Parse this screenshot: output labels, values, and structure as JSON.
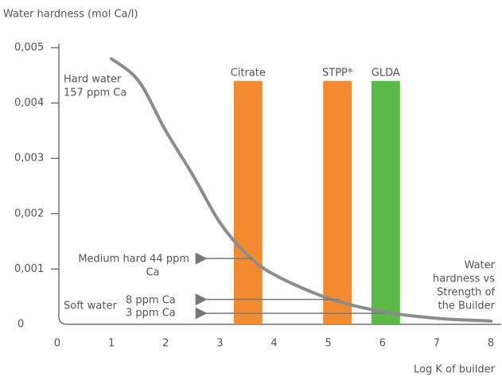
{
  "chart_data": {
    "type": "line",
    "y_axis_title": "Water hardness (mol Ca/l)",
    "x_axis_title": "Log K of builder",
    "xlim": [
      0,
      8
    ],
    "xticks": [
      0,
      1,
      2,
      3,
      4,
      5,
      6,
      7,
      8
    ],
    "ylim": [
      0,
      0.005
    ],
    "yticks": [
      0,
      {
        "value": 0.001,
        "label": "0,001"
      },
      {
        "value": 0.002,
        "label": "0,002"
      },
      {
        "value": 0.003,
        "label": "0,003"
      },
      {
        "value": 0.004,
        "label": "0,004"
      },
      {
        "value": 0.005,
        "label": "0,005"
      }
    ],
    "series": [
      {
        "color": "#8c8c8c",
        "x": [
          1,
          1.5,
          2,
          2.5,
          3,
          3.5,
          4,
          5,
          6,
          7,
          8
        ],
        "values": [
          0.0048,
          0.0044,
          0.0035,
          0.0027,
          0.00184,
          0.00126,
          0.0009,
          0.00047,
          0.00023,
          0.00011,
          6e-05
        ]
      }
    ],
    "bars": [
      {
        "name": "Citrate",
        "x": 3.52,
        "value": 0.0044,
        "color": "#f28a30"
      },
      {
        "name": "STPP*",
        "x": 5.17,
        "value": 0.0044,
        "color": "#f28a30"
      },
      {
        "name": "GLDA",
        "x": 6.06,
        "value": 0.0044,
        "color": "#5cba47"
      }
    ],
    "arrows": [
      {
        "y": 0.00119,
        "from": 3.6,
        "to": 2.6
      },
      {
        "y": 0.00045,
        "from": 5.2,
        "to": 2.6
      },
      {
        "y": 0.0002,
        "from": 6.05,
        "to": 2.6
      }
    ],
    "annotations": [
      {
        "lines": [
          "Hard water",
          "157 ppm Ca"
        ]
      },
      {
        "lines": [
          "Medium hard 44 ppm",
          "Ca"
        ]
      },
      {
        "lines": [
          "Soft water"
        ]
      },
      {
        "lines": [
          "8 ppm Ca",
          "3 ppm Ca"
        ]
      },
      {
        "lines": [
          "Water",
          "hardness vs",
          "Strength of",
          "the Builder"
        ]
      }
    ]
  }
}
